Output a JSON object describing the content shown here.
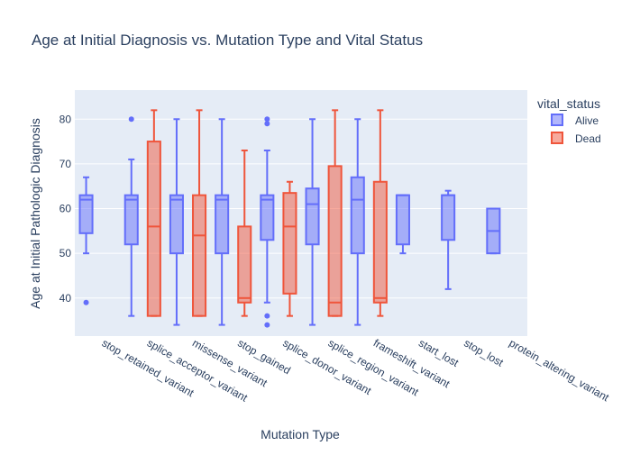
{
  "chart_data": {
    "type": "box",
    "title": "Age at Initial Diagnosis vs. Mutation Type and Vital Status",
    "xlabel": "Mutation Type",
    "ylabel": "Age at Initial Pathologic Diagnosis",
    "ylim": [
      31.5,
      86.5
    ],
    "yticks": [
      40,
      50,
      60,
      70,
      80
    ],
    "grid": true,
    "legend_title": "vital_status",
    "legend_position": "top-right",
    "categories": [
      "stop_retained_variant",
      "splice_acceptor_variant",
      "missense_variant",
      "stop_gained",
      "splice_donor_variant",
      "splice_region_variant",
      "frameshift_variant",
      "start_lost",
      "stop_lost",
      "protein_altering_variant"
    ],
    "series": [
      {
        "name": "Alive",
        "color": "#636efa",
        "boxes": [
          {
            "category": "stop_retained_variant",
            "whisker_low": 50,
            "q1": 54.5,
            "median": 62,
            "q3": 63,
            "whisker_high": 67,
            "outliers": [
              39
            ]
          },
          {
            "category": "splice_acceptor_variant",
            "whisker_low": 36,
            "q1": 52,
            "median": 62,
            "q3": 63,
            "whisker_high": 71,
            "outliers": [
              80
            ]
          },
          {
            "category": "missense_variant",
            "whisker_low": 34,
            "q1": 50,
            "median": 62,
            "q3": 63,
            "whisker_high": 80,
            "outliers": []
          },
          {
            "category": "stop_gained",
            "whisker_low": 34,
            "q1": 50,
            "median": 62,
            "q3": 63,
            "whisker_high": 80,
            "outliers": []
          },
          {
            "category": "splice_donor_variant",
            "whisker_low": 39,
            "q1": 53,
            "median": 62,
            "q3": 63,
            "whisker_high": 73,
            "outliers": [
              80,
              79,
              36,
              34
            ]
          },
          {
            "category": "splice_region_variant",
            "whisker_low": 34,
            "q1": 52,
            "median": 61,
            "q3": 64.5,
            "whisker_high": 80,
            "outliers": []
          },
          {
            "category": "frameshift_variant",
            "whisker_low": 34,
            "q1": 50,
            "median": 62,
            "q3": 67,
            "whisker_high": 80,
            "outliers": []
          },
          {
            "category": "start_lost",
            "whisker_low": 50,
            "q1": 52,
            "median": 63,
            "q3": 63,
            "whisker_high": 63,
            "outliers": []
          },
          {
            "category": "stop_lost",
            "whisker_low": 42,
            "q1": 53,
            "median": 63,
            "q3": 63,
            "whisker_high": 64,
            "outliers": []
          },
          {
            "category": "protein_altering_variant",
            "whisker_low": 50,
            "q1": 50,
            "median": 55,
            "q3": 60,
            "whisker_high": 60,
            "outliers": []
          }
        ]
      },
      {
        "name": "Dead",
        "color": "#ef553b",
        "boxes": [
          {
            "category": "splice_acceptor_variant",
            "whisker_low": 36,
            "q1": 36,
            "median": 56,
            "q3": 75,
            "whisker_high": 82,
            "outliers": []
          },
          {
            "category": "missense_variant",
            "whisker_low": 36,
            "q1": 36,
            "median": 54,
            "q3": 63,
            "whisker_high": 82,
            "outliers": []
          },
          {
            "category": "stop_gained",
            "whisker_low": 36,
            "q1": 39,
            "median": 40,
            "q3": 56,
            "whisker_high": 73,
            "outliers": []
          },
          {
            "category": "splice_donor_variant",
            "whisker_low": 36,
            "q1": 41,
            "median": 56,
            "q3": 63.5,
            "whisker_high": 66,
            "outliers": []
          },
          {
            "category": "splice_region_variant",
            "whisker_low": 36,
            "q1": 36,
            "median": 39,
            "q3": 69.5,
            "whisker_high": 82,
            "outliers": []
          },
          {
            "category": "frameshift_variant",
            "whisker_low": 36,
            "q1": 39,
            "median": 40,
            "q3": 66,
            "whisker_high": 82,
            "outliers": []
          }
        ]
      }
    ]
  }
}
